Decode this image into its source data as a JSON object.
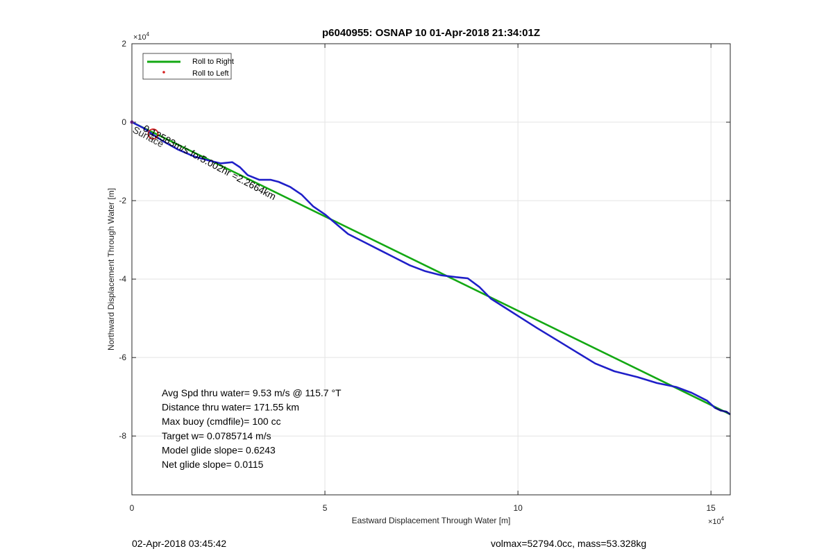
{
  "chart_data": {
    "type": "line",
    "title": "p6040955: OSNAP 10 01-Apr-2018 21:34:01Z",
    "xlabel": "Eastward Displacement Through Water [m]",
    "ylabel": "Northward Displacement Through Water [m]",
    "xlim": [
      0,
      155000
    ],
    "ylim": [
      -95000,
      20000
    ],
    "x_exponent_label": "×10",
    "x_exponent_power": "4",
    "y_exponent_label": "×10",
    "y_exponent_power": "4",
    "x_ticks": [
      0,
      50000,
      100000,
      150000
    ],
    "x_tick_labels": [
      "0",
      "5",
      "10",
      "15"
    ],
    "y_ticks": [
      20000,
      0,
      -20000,
      -40000,
      -60000,
      -80000
    ],
    "y_tick_labels": [
      "2",
      "0",
      "-2",
      "-4",
      "-6",
      "-8"
    ],
    "grid": true,
    "legend_position": "top-left",
    "legend": [
      {
        "name": "Roll to Right",
        "style": "line",
        "color": "#13a813"
      },
      {
        "name": "Roll to Left",
        "style": "dot",
        "color": "#d62020"
      }
    ],
    "series": [
      {
        "name": "Roll to Right",
        "color": "#13a813",
        "points": [
          [
            0,
            0
          ],
          [
            155000,
            -74500
          ]
        ]
      },
      {
        "name": "track",
        "color": "#1f1fc8",
        "points": [
          [
            0,
            0
          ],
          [
            3000,
            -1500
          ],
          [
            6000,
            -3500
          ],
          [
            8000,
            -4800
          ],
          [
            12000,
            -7000
          ],
          [
            16000,
            -8700
          ],
          [
            20000,
            -9800
          ],
          [
            23000,
            -10500
          ],
          [
            26000,
            -10200
          ],
          [
            28000,
            -11500
          ],
          [
            30000,
            -13500
          ],
          [
            33000,
            -14700
          ],
          [
            36000,
            -14700
          ],
          [
            38000,
            -15200
          ],
          [
            41000,
            -16500
          ],
          [
            44000,
            -18500
          ],
          [
            47000,
            -21500
          ],
          [
            50000,
            -23500
          ],
          [
            53000,
            -26000
          ],
          [
            56000,
            -28500
          ],
          [
            60000,
            -30500
          ],
          [
            64000,
            -32500
          ],
          [
            68000,
            -34500
          ],
          [
            72000,
            -36500
          ],
          [
            76000,
            -38000
          ],
          [
            80000,
            -39000
          ],
          [
            84000,
            -39500
          ],
          [
            87000,
            -39800
          ],
          [
            90000,
            -42000
          ],
          [
            93000,
            -45000
          ],
          [
            97000,
            -47500
          ],
          [
            101000,
            -50000
          ],
          [
            105000,
            -52500
          ],
          [
            110000,
            -55500
          ],
          [
            115000,
            -58500
          ],
          [
            120000,
            -61500
          ],
          [
            125000,
            -63500
          ],
          [
            131000,
            -65000
          ],
          [
            136000,
            -66500
          ],
          [
            141000,
            -67500
          ],
          [
            145000,
            -69000
          ],
          [
            149000,
            -71000
          ],
          [
            151000,
            -72800
          ],
          [
            152500,
            -73500
          ],
          [
            154000,
            -73800
          ],
          [
            155000,
            -74500
          ]
        ]
      }
    ],
    "markers": [
      {
        "name": "roll-left-circle",
        "x": 5500,
        "y": -3000,
        "color": "#d62020"
      }
    ],
    "annotation": {
      "text": "0.12583m/s for5.002hr =2.2664km",
      "overlap_text": "Surface",
      "x": 0,
      "y": -400
    },
    "stats": [
      "Avg Spd thru water=  9.53 m/s @ 115.7 °T",
      "Distance thru water= 171.55 km",
      "Max buoy (cmdfile)= 100 cc",
      "Target w= 0.0785714 m/s",
      "Model glide slope= 0.6243",
      "Net glide slope= 0.0115"
    ]
  },
  "footer": {
    "timestamp": "02-Apr-2018 03:45:42",
    "volmax": "volmax=52794.0cc, mass=53.328kg"
  }
}
